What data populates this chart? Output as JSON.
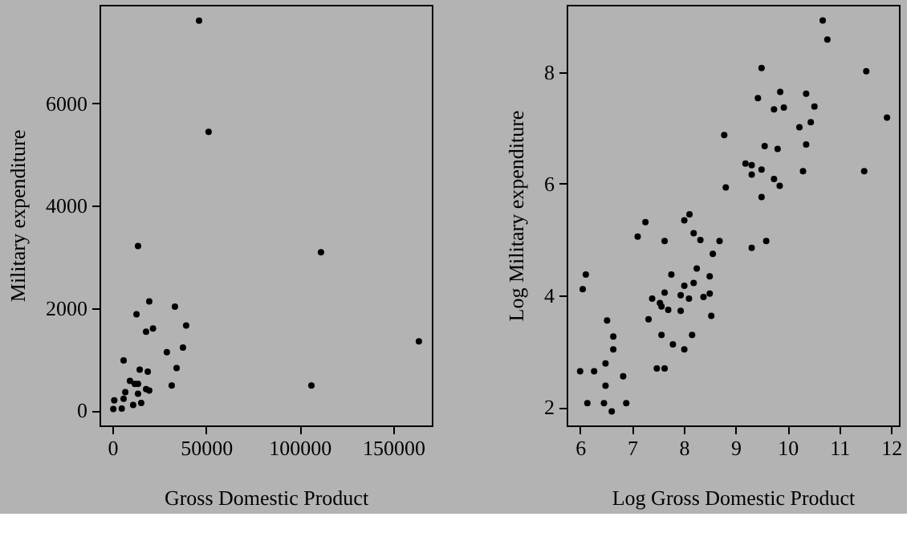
{
  "chart_data": [
    {
      "type": "scatter",
      "xlabel": "Gross Domestic Product",
      "ylabel": "Military expenditure",
      "xlim": [
        -6860,
        170600
      ],
      "ylim": [
        -290,
        7920
      ],
      "xticks": [
        0,
        50000,
        100000,
        150000
      ],
      "yticks": [
        0,
        2000,
        4000,
        6000
      ],
      "grid": false,
      "legend": false,
      "marker": "circle",
      "series": [
        {
          "color": "#000000",
          "x": [
            46300,
            51400,
            13700,
            111400,
            19700,
            33400,
            12900,
            39400,
            21700,
            18000,
            37700,
            29100,
            163700,
            6000,
            14600,
            18900,
            34300,
            9400,
            12000,
            13700,
            31700,
            106300,
            6900,
            13700,
            18000,
            19700,
            15400,
            11100,
            500,
            5000,
            1000,
            6000
          ],
          "values": [
            7610,
            5440,
            3210,
            3090,
            2130,
            2030,
            1880,
            1660,
            1600,
            1540,
            1230,
            1140,
            1350,
            980,
            800,
            760,
            830,
            580,
            520,
            520,
            490,
            490,
            360,
            330,
            420,
            390,
            150,
            110,
            30,
            40,
            200,
            230
          ]
        }
      ]
    },
    {
      "type": "scatter",
      "xlabel": "Log Gross Domestic Product",
      "ylabel": "Log Military expenditure",
      "xlim": [
        5.74,
        12.15
      ],
      "ylim": [
        1.67,
        9.2
      ],
      "xticks": [
        6,
        7,
        8,
        9,
        10,
        11,
        12
      ],
      "yticks": [
        2,
        4,
        6,
        8
      ],
      "grid": false,
      "legend": false,
      "marker": "circle",
      "series": [
        {
          "color": "#000000",
          "x": [
            10.68,
            10.77,
            9.5,
            11.52,
            9.86,
            9.43,
            10.36,
            9.93,
            9.74,
            10.52,
            11.92,
            10.45,
            10.23,
            8.78,
            9.56,
            9.81,
            10.36,
            9.19,
            9.31,
            9.5,
            9.31,
            10.3,
            11.48,
            9.74,
            9.85,
            8.81,
            9.5,
            9.31,
            9.59,
            8.11,
            8.01,
            7.26,
            7.11,
            7.63,
            8.19,
            8.32,
            8.69,
            8.56,
            8.25,
            7.76,
            8.5,
            8.19,
            8.01,
            7.63,
            8.5,
            8.38,
            7.94,
            8.1,
            7.39,
            7.54,
            7.57,
            7.7,
            7.94,
            7.32,
            8.53,
            7.57,
            8.16,
            7.79,
            8.01,
            7.48,
            7.63,
            6.11,
            6.05,
            6.52,
            6.64,
            6.64,
            6.49,
            6.0,
            6.27,
            6.83,
            6.49,
            6.14,
            6.46,
            6.89,
            6.61
          ],
          "values": [
            8.92,
            8.58,
            8.07,
            8.01,
            7.64,
            7.53,
            7.61,
            7.36,
            7.33,
            7.38,
            7.18,
            7.1,
            7.01,
            6.87,
            6.67,
            6.62,
            6.7,
            6.36,
            6.33,
            6.25,
            6.16,
            6.22,
            6.22,
            6.08,
            5.96,
            5.93,
            5.76,
            4.85,
            4.97,
            5.45,
            5.34,
            5.31,
            5.05,
            4.97,
            5.11,
            4.99,
            4.97,
            4.74,
            4.48,
            4.37,
            4.34,
            4.22,
            4.17,
            4.05,
            4.03,
            3.97,
            4.0,
            3.94,
            3.94,
            3.86,
            3.8,
            3.74,
            3.72,
            3.57,
            3.63,
            3.29,
            3.29,
            3.12,
            3.03,
            2.69,
            2.69,
            4.37,
            4.11,
            3.55,
            3.26,
            3.03,
            2.78,
            2.64,
            2.64,
            2.55,
            2.38,
            2.07,
            2.07,
            2.07,
            1.92
          ]
        }
      ]
    }
  ]
}
